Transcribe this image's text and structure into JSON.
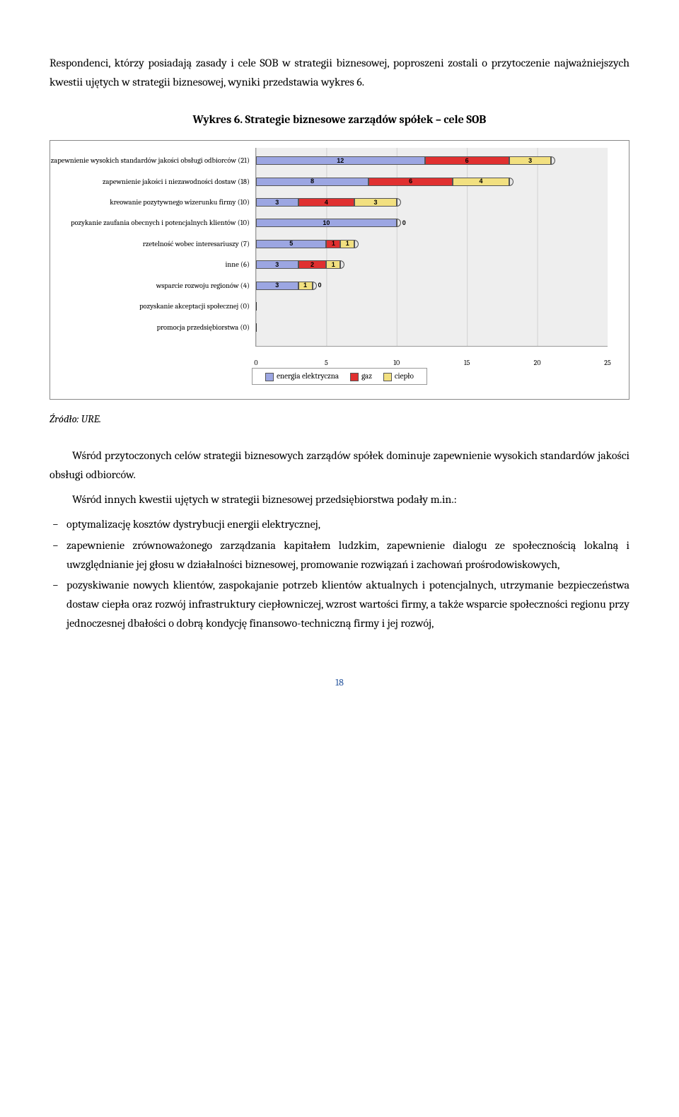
{
  "intro_text": "Respondenci, którzy posiadają zasady i cele SOB w strategii biznesowej, poproszeni zostali o przytoczenie najważniejszych kwestii ujętych w strategii biznesowej, wyniki przedstawia wykres 6.",
  "chart": {
    "title": "Wykres 6. Strategie biznesowe zarządów spółek – cele SOB",
    "x_max": 25,
    "x_ticks": [
      0,
      5,
      10,
      15,
      20,
      25
    ],
    "colors": {
      "energia": "#9ca6e2",
      "gaz": "#e03030",
      "cieplo": "#f2e080",
      "grid_bg": "#eeeeee"
    },
    "categories": [
      {
        "label": "zapewnienie wysokich standardów jakości obsługi odbiorców (21)",
        "values": [
          12,
          6,
          3
        ]
      },
      {
        "label": "zapewnienie jakości i niezawodności dostaw (18)",
        "values": [
          8,
          6,
          4
        ]
      },
      {
        "label": "kreowanie pozytywnego wizerunku firmy (10)",
        "values": [
          3,
          4,
          3
        ]
      },
      {
        "label": "pozykanie zaufania obecnych i potencjalnych klientów (10)",
        "values": [
          10,
          0,
          0
        ]
      },
      {
        "label": "rzetelność wobec interesariuszy (7)",
        "values": [
          5,
          1,
          1
        ]
      },
      {
        "label": "inne (6)",
        "values": [
          3,
          2,
          1
        ]
      },
      {
        "label": "wsparcie rozwoju regionów  (4)",
        "values": [
          3,
          0,
          1
        ]
      },
      {
        "label": "pozyskanie akceptacji społecznej (0)",
        "values": [
          0,
          0,
          0
        ]
      },
      {
        "label": "promocja przedsiębiorstwa (0)",
        "values": [
          0,
          0,
          0
        ]
      }
    ],
    "legend": [
      {
        "label": "energia elektryczna",
        "color_key": "energia"
      },
      {
        "label": "gaz",
        "color_key": "gaz"
      },
      {
        "label": "ciepło",
        "color_key": "cieplo"
      }
    ]
  },
  "source": "Źródło: URE.",
  "para1": "Wśród przytoczonych celów strategii biznesowych zarządów spółek dominuje zapewnienie wysokich standardów jakości obsługi odbiorców.",
  "para2": "Wśród innych kwestii ujętych w strategii biznesowej przedsiębiorstwa podały m.in.:",
  "bullets": [
    "optymalizację kosztów dystrybucji energii elektrycznej,",
    "zapewnienie zrównoważonego zarządzania kapitałem ludzkim, zapewnienie dialogu ze społecznością lokalną i uwzględnianie jej głosu w działalności biznesowej, promowanie rozwiązań i zachowań prośrodowiskowych,",
    "pozyskiwanie nowych klientów, zaspokajanie potrzeb klientów aktualnych i potencjalnych, utrzymanie bezpieczeństwa dostaw ciepła oraz rozwój infrastruktury ciepłowniczej, wzrost wartości firmy, a także wsparcie społeczności regionu przy jednoczesnej dbałości o dobrą kondycję finansowo-techniczną firmy i jej rozwój,"
  ],
  "page_number": "18"
}
